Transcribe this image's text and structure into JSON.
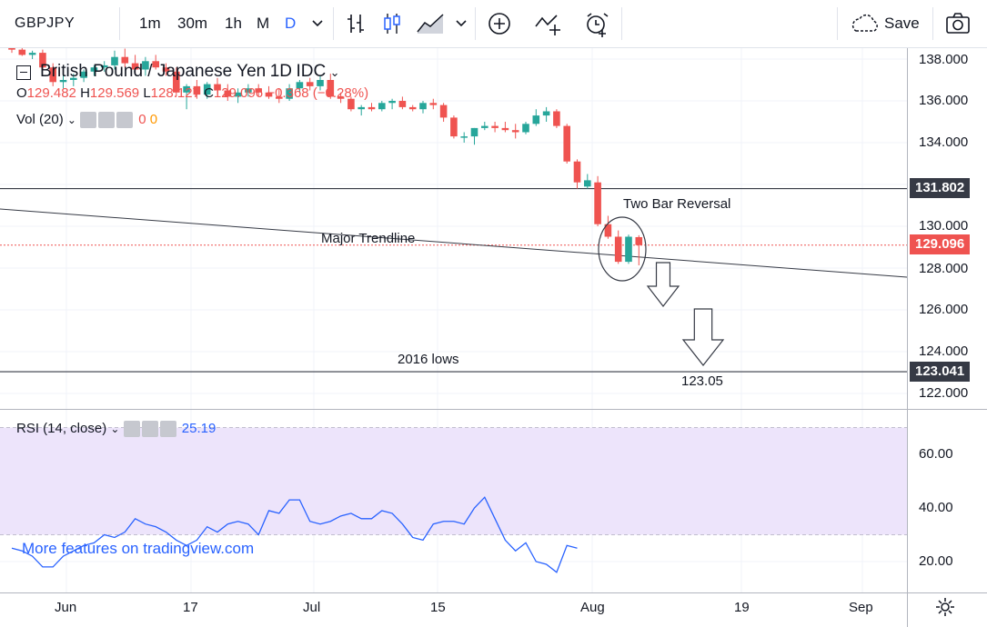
{
  "toolbar": {
    "symbol": "GBPJPY",
    "intervals": [
      "1m",
      "30m",
      "1h",
      "M",
      "D"
    ],
    "active_interval": "D",
    "save_label": "Save",
    "icons": [
      "chevron-down-icon",
      "bar-chart-icon",
      "candlestick-icon",
      "area-chart-icon",
      "chevron-down-icon",
      "add-indicator-icon",
      "compare-icon",
      "alert-icon",
      "cloud-icon",
      "camera-icon"
    ]
  },
  "legend": {
    "title": "British Pound / Japanese Yen",
    "interval": "1D",
    "exchange": "IDC",
    "ohlc": {
      "o_label": "O",
      "o": "129.482",
      "h_label": "H",
      "h": "129.569",
      "l_label": "L",
      "l": "128.127",
      "c_label": "C",
      "c": "129.096",
      "change": "−0.368 (−0.28%)"
    },
    "volume": {
      "label": "Vol (20)",
      "v1": "0",
      "v2": "0"
    },
    "rsi": {
      "label": "RSI (14, close)",
      "value": "25.19"
    }
  },
  "promo": "More features on tradingview.com",
  "colors": {
    "up": "#26a69a",
    "down": "#ef5350",
    "rsi_line": "#2962ff",
    "rsi_band": "#ede4fb",
    "accent": "#2962ff"
  },
  "chart_data": [
    {
      "type": "candlestick",
      "title": "British Pound / Japanese Yen",
      "x_ticks": [
        "Jun",
        "17",
        "Jul",
        "15",
        "Aug",
        "19",
        "Sep"
      ],
      "y_ticks": [
        "138.000",
        "136.000",
        "134.000",
        "130.000",
        "128.000",
        "126.000",
        "124.000",
        "122.000"
      ],
      "ylim": [
        121.3,
        139.2
      ],
      "ohlc": [
        [
          138.6,
          138.75,
          138.3,
          138.45
        ],
        [
          138.45,
          138.6,
          138.15,
          138.2
        ],
        [
          138.2,
          138.4,
          138.0,
          138.3
        ],
        [
          138.3,
          138.45,
          137.5,
          137.6
        ],
        [
          137.6,
          137.8,
          136.7,
          136.9
        ],
        [
          136.9,
          137.3,
          136.6,
          137.0
        ],
        [
          137.0,
          137.3,
          136.7,
          137.1
        ],
        [
          137.1,
          137.5,
          136.9,
          137.4
        ],
        [
          137.4,
          137.7,
          137.2,
          137.6
        ],
        [
          137.6,
          137.9,
          137.4,
          137.7
        ],
        [
          137.7,
          138.4,
          137.5,
          138.1
        ],
        [
          138.1,
          138.5,
          137.6,
          137.8
        ],
        [
          137.8,
          138.2,
          137.3,
          137.5
        ],
        [
          137.5,
          138.1,
          137.2,
          137.9
        ],
        [
          137.9,
          138.2,
          137.5,
          137.6
        ],
        [
          137.6,
          137.8,
          137.2,
          137.4
        ],
        [
          137.4,
          137.6,
          136.2,
          136.4
        ],
        [
          136.4,
          136.8,
          135.6,
          136.7
        ],
        [
          136.7,
          137.0,
          136.1,
          136.3
        ],
        [
          136.3,
          136.9,
          136.1,
          136.8
        ],
        [
          136.8,
          137.1,
          136.3,
          136.5
        ],
        [
          136.5,
          136.8,
          136.0,
          136.2
        ],
        [
          136.2,
          136.6,
          135.9,
          136.4
        ],
        [
          136.4,
          136.8,
          136.2,
          136.6
        ],
        [
          136.6,
          136.8,
          136.2,
          136.4
        ],
        [
          136.4,
          136.7,
          136.1,
          136.2
        ],
        [
          136.2,
          136.6,
          135.9,
          136.1
        ],
        [
          136.1,
          136.8,
          136.0,
          136.6
        ],
        [
          136.6,
          137.0,
          136.4,
          136.9
        ],
        [
          136.9,
          137.1,
          136.5,
          136.7
        ],
        [
          136.7,
          137.2,
          136.5,
          137.0
        ],
        [
          137.0,
          137.3,
          136.1,
          136.2
        ],
        [
          136.2,
          136.4,
          135.9,
          136.1
        ],
        [
          136.1,
          136.2,
          135.5,
          135.6
        ],
        [
          135.6,
          135.8,
          135.3,
          135.7
        ],
        [
          135.7,
          135.9,
          135.5,
          135.6
        ],
        [
          135.6,
          136.0,
          135.5,
          135.9
        ],
        [
          135.9,
          136.1,
          135.6,
          136.0
        ],
        [
          136.0,
          136.2,
          135.6,
          135.7
        ],
        [
          135.7,
          135.8,
          135.5,
          135.6
        ],
        [
          135.6,
          136.0,
          135.4,
          135.9
        ],
        [
          135.9,
          136.1,
          135.6,
          135.8
        ],
        [
          135.8,
          135.9,
          135.0,
          135.2
        ],
        [
          135.2,
          135.3,
          134.2,
          134.3
        ],
        [
          134.3,
          134.5,
          134.0,
          134.3
        ],
        [
          134.3,
          134.7,
          133.9,
          134.7
        ],
        [
          134.7,
          135.0,
          134.6,
          134.8
        ],
        [
          134.8,
          135.0,
          134.5,
          134.7
        ],
        [
          134.7,
          135.0,
          134.5,
          134.6
        ],
        [
          134.6,
          134.9,
          134.2,
          134.5
        ],
        [
          134.5,
          135.0,
          134.4,
          134.9
        ],
        [
          134.9,
          135.6,
          134.8,
          135.3
        ],
        [
          135.3,
          135.7,
          135.0,
          135.5
        ],
        [
          135.5,
          135.6,
          134.7,
          134.8
        ],
        [
          134.8,
          134.9,
          133.0,
          133.1
        ],
        [
          133.1,
          133.2,
          131.8,
          132.1
        ],
        [
          131.9,
          132.5,
          131.8,
          132.2
        ],
        [
          132.1,
          132.4,
          130.0,
          130.1
        ],
        [
          130.1,
          130.5,
          129.4,
          129.5
        ],
        [
          129.5,
          129.8,
          128.2,
          128.3
        ],
        [
          128.3,
          129.6,
          128.2,
          129.5
        ],
        [
          129.48,
          129.57,
          128.13,
          129.1
        ]
      ],
      "annotations": [
        {
          "text": "Two Bar Reversal"
        },
        {
          "text": "Major Trendline"
        },
        {
          "text": "2016 lows"
        },
        {
          "text": "123.05"
        }
      ],
      "horizontal_lines": [
        131.802,
        123.041
      ],
      "current_price": 129.096,
      "price_badges": [
        "131.802",
        "129.096",
        "123.041"
      ]
    },
    {
      "type": "line",
      "title": "RSI (14, close)",
      "y_ticks": [
        "60.00",
        "40.00",
        "20.00"
      ],
      "ylim": [
        12,
        75
      ],
      "band": [
        30,
        70
      ],
      "series": [
        {
          "name": "RSI (14, close)",
          "values": [
            25,
            24,
            22,
            18,
            18,
            22,
            24,
            26,
            27,
            30,
            29,
            31,
            36,
            34,
            33,
            31,
            28,
            26,
            28,
            33,
            31,
            34,
            35,
            34,
            30,
            39,
            38,
            43,
            43,
            35,
            34,
            35,
            37,
            38,
            36,
            36,
            39,
            38,
            34,
            29,
            28,
            34,
            35,
            35,
            34,
            40,
            44,
            36,
            28,
            24,
            27,
            20,
            19,
            16,
            26,
            25
          ]
        }
      ]
    }
  ]
}
